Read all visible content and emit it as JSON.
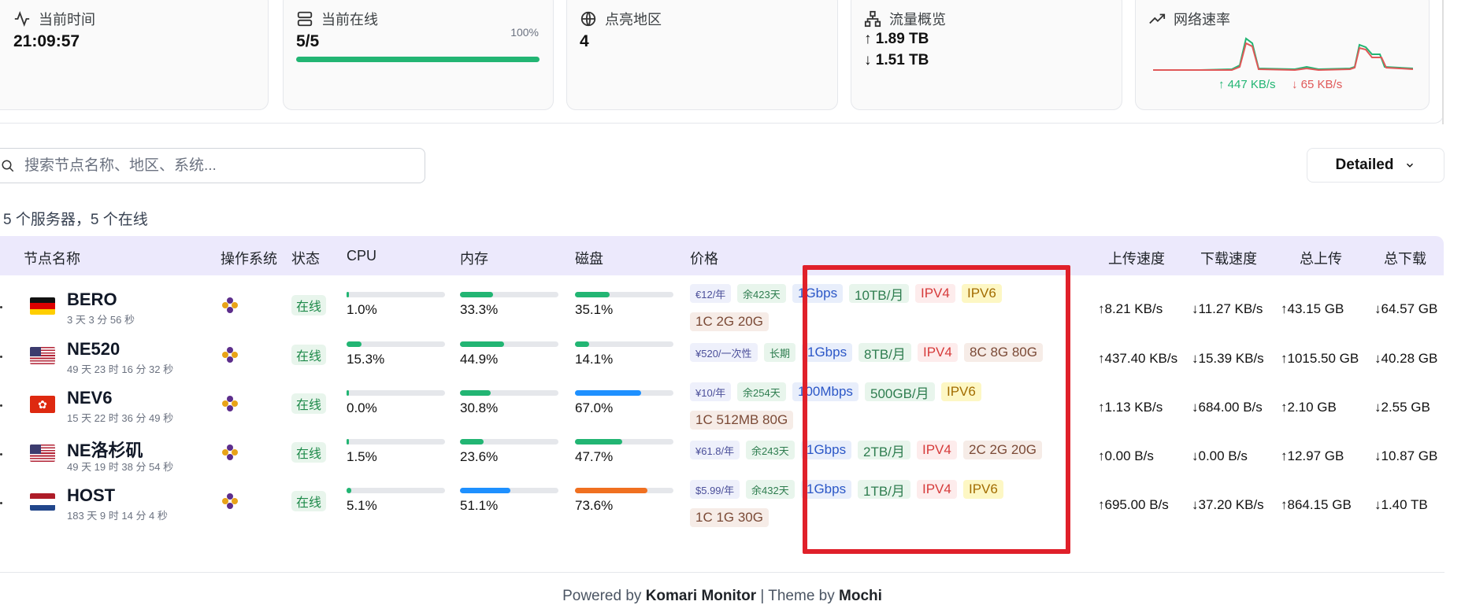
{
  "cards": {
    "time": {
      "label": "当前时间",
      "value": "21:09:57"
    },
    "online": {
      "label": "当前在线",
      "value": "5/5",
      "percent_label": "100%",
      "percent": 1.0
    },
    "regions": {
      "label": "点亮地区",
      "value": "4"
    },
    "traffic": {
      "label": "流量概览",
      "up": "↑ 1.89 TB",
      "down": "↓ 1.51 TB"
    },
    "speed": {
      "label": "网络速率",
      "up": "↑ 447 KB/s",
      "down": "↓ 65 KB/s"
    }
  },
  "search": {
    "placeholder": "搜索节点名称、地区、系统..."
  },
  "view_select": {
    "value": "Detailed"
  },
  "summary": "5 个服务器，5 个在线",
  "columns": {
    "name": "节点名称",
    "os": "操作系统",
    "status": "状态",
    "cpu": "CPU",
    "mem": "内存",
    "disk": "磁盘",
    "price": "价格",
    "up_speed": "上传速度",
    "down_speed": "下载速度",
    "total_up": "总上传",
    "total_down": "总下载"
  },
  "rows": [
    {
      "name": "BERO",
      "uptime": "3 天 3 分 56 秒",
      "flag": "de",
      "status": "在线",
      "cpu": "1.0%",
      "cpu_v": 0.01,
      "mem": "33.3%",
      "mem_v": 0.333,
      "disk": "35.1%",
      "disk_v": 0.351,
      "price": "€12/年",
      "days": "余423天",
      "bw": "1Gbps",
      "traffic": "10TB/月",
      "v4": "IPV4",
      "v6": "IPV6",
      "spec": "1C 2G 20G",
      "up": "↑8.21 KB/s",
      "down": "↓11.27 KB/s",
      "tup": "↑43.15 GB",
      "tdown": "↓64.57 GB"
    },
    {
      "name": "NE520",
      "uptime": "49 天 23 时 16 分 32 秒",
      "flag": "us",
      "status": "在线",
      "cpu": "15.3%",
      "cpu_v": 0.153,
      "mem": "44.9%",
      "mem_v": 0.449,
      "disk": "14.1%",
      "disk_v": 0.141,
      "price": "¥520/一次性",
      "days": "长期",
      "bw": "1Gbps",
      "traffic": "8TB/月",
      "v4": "IPV4",
      "v6": "",
      "spec": "8C 8G 80G",
      "up": "↑437.40 KB/s",
      "down": "↓15.39 KB/s",
      "tup": "↑1015.50 GB",
      "tdown": "↓40.28 GB"
    },
    {
      "name": "NEV6",
      "uptime": "15 天 22 时 36 分 49 秒",
      "flag": "hk",
      "status": "在线",
      "cpu": "0.0%",
      "cpu_v": 0.0,
      "mem": "30.8%",
      "mem_v": 0.308,
      "disk": "67.0%",
      "disk_v": 0.67,
      "price": "¥10/年",
      "days": "余254天",
      "bw": "100Mbps",
      "traffic": "500GB/月",
      "v4": "",
      "v6": "IPV6",
      "spec": "1C 512MB 80G",
      "up": "↑1.13 KB/s",
      "down": "↓684.00 B/s",
      "tup": "↑2.10 GB",
      "tdown": "↓2.55 GB"
    },
    {
      "name": "NE洛杉矶",
      "uptime": "49 天 19 时 38 分 54 秒",
      "flag": "us",
      "status": "在线",
      "cpu": "1.5%",
      "cpu_v": 0.015,
      "mem": "23.6%",
      "mem_v": 0.236,
      "disk": "47.7%",
      "disk_v": 0.477,
      "price": "¥61.8/年",
      "days": "余243天",
      "bw": "1Gbps",
      "traffic": "2TB/月",
      "v4": "IPV4",
      "v6": "",
      "spec": "2C 2G 20G",
      "up": "↑0.00 B/s",
      "down": "↓0.00 B/s",
      "tup": "↑12.97 GB",
      "tdown": "↓10.87 GB"
    },
    {
      "name": "HOST",
      "uptime": "183 天 9 时 14 分 4 秒",
      "flag": "nl",
      "status": "在线",
      "cpu": "5.1%",
      "cpu_v": 0.051,
      "mem": "51.1%",
      "mem_v": 0.511,
      "disk": "73.6%",
      "disk_v": 0.736,
      "price": "$5.99/年",
      "days": "余432天",
      "bw": "1Gbps",
      "traffic": "1TB/月",
      "v4": "IPV4",
      "v6": "IPV6",
      "spec": "1C 1G 30G",
      "up": "↑695.00 B/s",
      "down": "↓37.20 KB/s",
      "tup": "↑864.15 GB",
      "tdown": "↓1.40 TB"
    }
  ],
  "footer": {
    "prefix": "Powered by",
    "app": "Komari Monitor",
    "sep": "| Theme by",
    "theme": "Mochi"
  },
  "colors": {
    "green": "#22b573",
    "blue": "#1e90ff",
    "orange": "#f07020",
    "annotation": "#e0202a"
  }
}
